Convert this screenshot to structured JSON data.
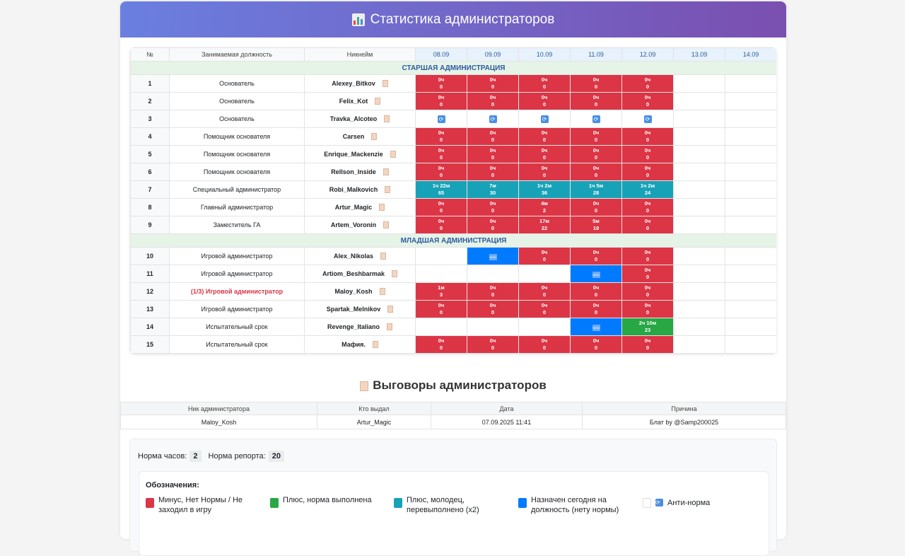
{
  "header": {
    "title": "Статистика администраторов",
    "icon": "bar-chart-icon"
  },
  "table": {
    "columns": [
      "№",
      "Занимаемая должность",
      "Никнейм",
      "08.09",
      "09.09",
      "10.09",
      "11.09",
      "12.09",
      "13.09",
      "14.09"
    ],
    "sections": [
      {
        "title": "СТАРШАЯ АДМИНИСТРАЦИЯ",
        "rows": [
          {
            "n": "1",
            "pos": "Основатель",
            "nick": "Alexey_Bitkov",
            "cells": [
              [
                "r",
                "0ч",
                "0"
              ],
              [
                "r",
                "0ч",
                "0"
              ],
              [
                "r",
                "0ч",
                "0"
              ],
              [
                "r",
                "0ч",
                "0"
              ],
              [
                "r",
                "0ч",
                "0"
              ],
              [
                "e"
              ],
              [
                "e"
              ]
            ]
          },
          {
            "n": "2",
            "pos": "Основатель",
            "nick": "Felix_Kot",
            "cells": [
              [
                "r",
                "0ч",
                "0"
              ],
              [
                "r",
                "0ч",
                "0"
              ],
              [
                "r",
                "0ч",
                "0"
              ],
              [
                "r",
                "0ч",
                "0"
              ],
              [
                "r",
                "0ч",
                "0"
              ],
              [
                "e"
              ],
              [
                "e"
              ]
            ]
          },
          {
            "n": "3",
            "pos": "Основатель",
            "nick": "Travka_Alcoteo",
            "cells": [
              [
                "a"
              ],
              [
                "a"
              ],
              [
                "a"
              ],
              [
                "a"
              ],
              [
                "a"
              ],
              [
                "e"
              ],
              [
                "e"
              ]
            ]
          },
          {
            "n": "4",
            "pos": "Помощник основателя",
            "nick": "Carsen",
            "cells": [
              [
                "r",
                "0ч",
                "0"
              ],
              [
                "r",
                "0ч",
                "0"
              ],
              [
                "r",
                "0ч",
                "0"
              ],
              [
                "r",
                "0ч",
                "0"
              ],
              [
                "r",
                "0ч",
                "0"
              ],
              [
                "e"
              ],
              [
                "e"
              ]
            ]
          },
          {
            "n": "5",
            "pos": "Помощник основателя",
            "nick": "Enrique_Mackenzie",
            "cells": [
              [
                "r",
                "0ч",
                "0"
              ],
              [
                "r",
                "0ч",
                "0"
              ],
              [
                "r",
                "0ч",
                "0"
              ],
              [
                "r",
                "0ч",
                "0"
              ],
              [
                "r",
                "0ч",
                "0"
              ],
              [
                "e"
              ],
              [
                "e"
              ]
            ]
          },
          {
            "n": "6",
            "pos": "Помощник основателя",
            "nick": "Rellson_Inside",
            "cells": [
              [
                "r",
                "0ч",
                "0"
              ],
              [
                "r",
                "0ч",
                "0"
              ],
              [
                "r",
                "0ч",
                "0"
              ],
              [
                "r",
                "0ч",
                "0"
              ],
              [
                "r",
                "0ч",
                "0"
              ],
              [
                "e"
              ],
              [
                "e"
              ]
            ]
          },
          {
            "n": "7",
            "pos": "Специальный администратор",
            "nick": "Robi_Malkovich",
            "cells": [
              [
                "c",
                "1ч 22м",
                "65"
              ],
              [
                "c",
                "7м",
                "30"
              ],
              [
                "c",
                "1ч 2м",
                "36"
              ],
              [
                "c",
                "1ч 5м",
                "28"
              ],
              [
                "c",
                "1ч 2м",
                "24"
              ],
              [
                "e"
              ],
              [
                "e"
              ]
            ]
          },
          {
            "n": "8",
            "pos": "Главный администратор",
            "nick": "Artur_Magic",
            "cells": [
              [
                "r",
                "0ч",
                "0"
              ],
              [
                "r",
                "0ч",
                "0"
              ],
              [
                "r",
                "4м",
                "2"
              ],
              [
                "r",
                "0ч",
                "0"
              ],
              [
                "r",
                "0ч",
                "0"
              ],
              [
                "e"
              ],
              [
                "e"
              ]
            ]
          },
          {
            "n": "9",
            "pos": "Заместитель ГА",
            "nick": "Artem_Voronin",
            "cells": [
              [
                "r",
                "0ч",
                "0"
              ],
              [
                "r",
                "0ч",
                "0"
              ],
              [
                "r",
                "17м",
                "22"
              ],
              [
                "r",
                "5м",
                "19"
              ],
              [
                "r",
                "0ч",
                "0"
              ],
              [
                "e"
              ],
              [
                "e"
              ]
            ]
          }
        ]
      },
      {
        "title": "МЛАДШАЯ АДМИНИСТРАЦИЯ",
        "rows": [
          {
            "n": "10",
            "pos": "Игровой администратор",
            "nick": "Alex_Nikolas",
            "cells": [
              [
                "e"
              ],
              [
                "b",
                "NEW"
              ],
              [
                "r",
                "0ч",
                "0"
              ],
              [
                "r",
                "0ч",
                "0"
              ],
              [
                "r",
                "0ч",
                "0"
              ],
              [
                "e"
              ],
              [
                "e"
              ]
            ]
          },
          {
            "n": "11",
            "pos": "Игровой администратор",
            "nick": "Artiom_Beshbarmak",
            "cells": [
              [
                "e"
              ],
              [
                "e"
              ],
              [
                "e"
              ],
              [
                "b",
                "NEW"
              ],
              [
                "r",
                "0ч",
                "0"
              ],
              [
                "e"
              ],
              [
                "e"
              ]
            ]
          },
          {
            "n": "12",
            "pos": "(1/3) Игровой администратор",
            "warn": true,
            "nick": "Maloy_Kosh",
            "cells": [
              [
                "r",
                "1м",
                "3"
              ],
              [
                "r",
                "0ч",
                "0"
              ],
              [
                "r",
                "0ч",
                "0"
              ],
              [
                "r",
                "0ч",
                "0"
              ],
              [
                "r",
                "0ч",
                "0"
              ],
              [
                "e"
              ],
              [
                "e"
              ]
            ]
          },
          {
            "n": "13",
            "pos": "Игровой администратор",
            "nick": "Spartak_Melnikov",
            "cells": [
              [
                "r",
                "0ч",
                "0"
              ],
              [
                "r",
                "0ч",
                "0"
              ],
              [
                "r",
                "0ч",
                "0"
              ],
              [
                "r",
                "0ч",
                "0"
              ],
              [
                "r",
                "0ч",
                "0"
              ],
              [
                "e"
              ],
              [
                "e"
              ]
            ]
          },
          {
            "n": "14",
            "pos": "Испытательный срок",
            "nick": "Revenge_Italiano",
            "cells": [
              [
                "e"
              ],
              [
                "e"
              ],
              [
                "e"
              ],
              [
                "b",
                "NEW"
              ],
              [
                "g",
                "2ч 10м",
                "23"
              ],
              [
                "e"
              ],
              [
                "e"
              ]
            ]
          },
          {
            "n": "15",
            "pos": "Испытательный срок",
            "nick": "Мафия.",
            "cells": [
              [
                "r",
                "0ч",
                "0"
              ],
              [
                "r",
                "0ч",
                "0"
              ],
              [
                "r",
                "0ч",
                "0"
              ],
              [
                "r",
                "0ч",
                "0"
              ],
              [
                "r",
                "0ч",
                "0"
              ],
              [
                "e"
              ],
              [
                "e"
              ]
            ]
          }
        ]
      }
    ]
  },
  "reprimands": {
    "title": "Выговоры администраторов",
    "columns": [
      "Ник администратора",
      "Кто выдал",
      "Дата",
      "Причина"
    ],
    "rows": [
      [
        "Maloy_Kosh",
        "Artur_Magic",
        "07.09.2025 11:41",
        "Блат by @Samp200025"
      ]
    ]
  },
  "norms": {
    "hours_label": "Норма часов:",
    "hours": "2",
    "report_label": "Норма репорта:",
    "report": "20"
  },
  "legend": {
    "title": "Обозначения:",
    "items": [
      {
        "color": "#dc3545",
        "label": "Минус, Нет Нормы / Не заходил в игру"
      },
      {
        "color": "#28a745",
        "label": "Плюс, норма выполнена"
      },
      {
        "color": "#17a2b8",
        "label": "Плюс, молодец, перевыполнено (x2)"
      },
      {
        "color": "#007bff",
        "label": "Назначен сегодня на должность (нету нормы)"
      },
      {
        "color": "#ffffff",
        "label": "Анти-норма"
      }
    ]
  }
}
